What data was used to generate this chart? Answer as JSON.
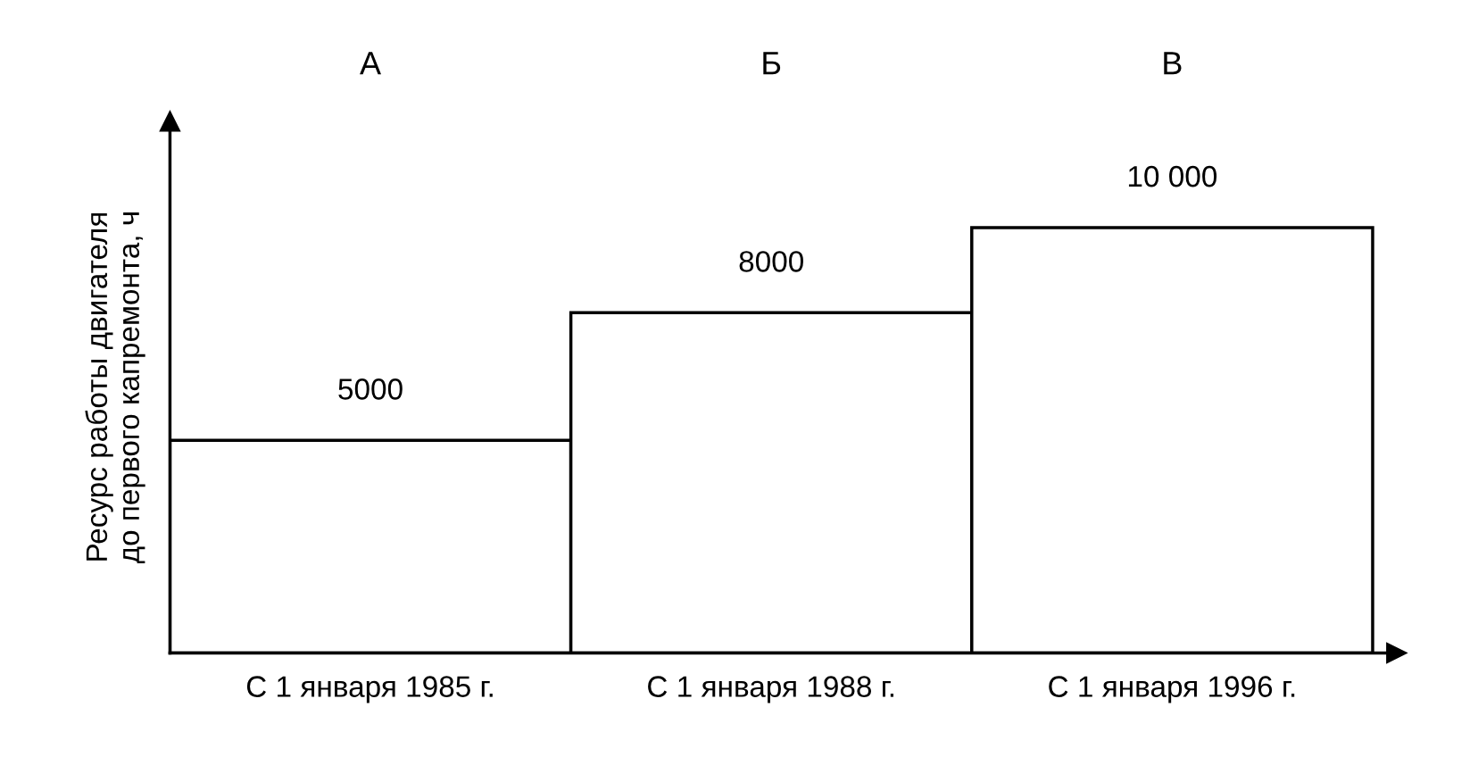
{
  "chart_data": {
    "type": "bar",
    "ylabel": "Ресурс работы двигателя\nдо первого капремонта, ч",
    "categories": [
      "С 1 января 1985 г.",
      "С 1 января 1988 г.",
      "С 1 января 1996 г."
    ],
    "values": [
      5000,
      8000,
      10000
    ],
    "value_labels": [
      "5000",
      "8000",
      "10 000"
    ],
    "color": "#ffffff",
    "annotations": [
      "А",
      "Б",
      "В"
    ],
    "grid": false,
    "legend": false
  }
}
